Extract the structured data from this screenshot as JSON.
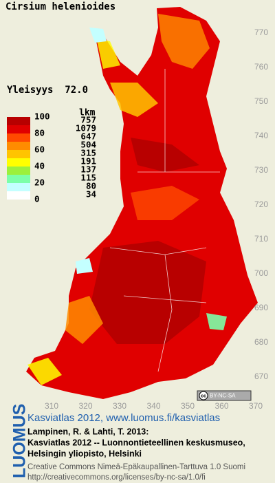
{
  "title": "Cirsium helenioides",
  "prevalence": "Yleisyys  72.0",
  "legend": {
    "count_header": "lkm",
    "scale_labels": [
      100,
      80,
      60,
      40,
      20,
      0
    ],
    "classes": [
      {
        "color": "#b80000",
        "count": 757
      },
      {
        "color": "#e00000",
        "count": 1079
      },
      {
        "color": "#ff4a00",
        "count": 647
      },
      {
        "color": "#ff8c00",
        "count": 504
      },
      {
        "color": "#ffc400",
        "count": 315
      },
      {
        "color": "#ffff00",
        "count": 191
      },
      {
        "color": "#9cf03c",
        "count": 137
      },
      {
        "color": "#7cffa8",
        "count": 115
      },
      {
        "color": "#c4ffff",
        "count": 80
      },
      {
        "color": "#ffffff",
        "count": 34
      }
    ]
  },
  "map": {
    "y_ticks": [
      770,
      760,
      750,
      740,
      730,
      720,
      710,
      700,
      690,
      680,
      670
    ],
    "x_ticks": [
      310,
      320,
      330,
      340,
      350,
      360,
      370
    ]
  },
  "license_badge": {
    "symbol": "cc",
    "text": "BY-NC-SA"
  },
  "brand": "LUOMUS",
  "credits": {
    "link": "Kasviatlas 2012, www.luomus.fi/kasviatlas",
    "citation": [
      "Lampinen, R. & Lahti, T. 2013:",
      "Kasviatlas 2012 -- Luonnontieteellinen keskusmuseo,",
      "Helsingin yliopisto, Helsinki"
    ],
    "license": [
      "Creative Commons Nimeä-Epäkaupallinen-Tarttuva 1.0 Suomi",
      "http://creativecommons.org/licenses/by-nc-sa/1.0/fi"
    ]
  }
}
